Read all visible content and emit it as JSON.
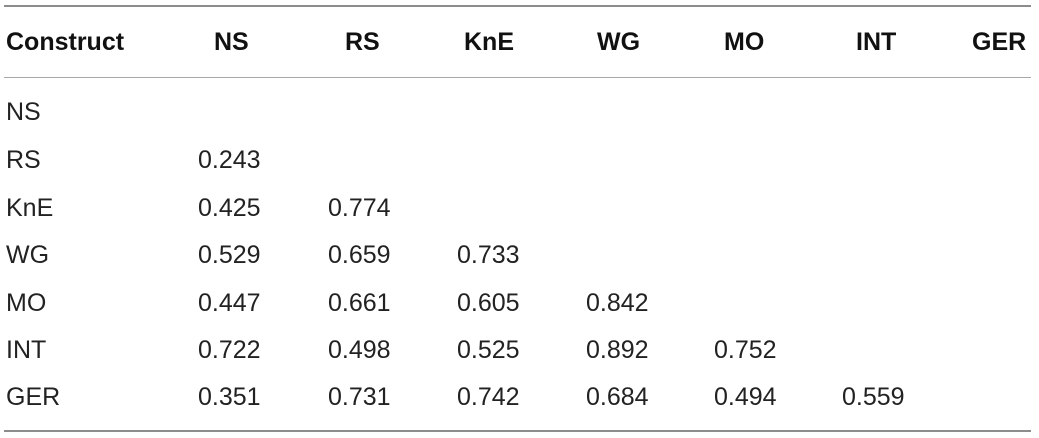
{
  "table": {
    "headers": [
      "Construct",
      "NS",
      "RS",
      "KnE",
      "WG",
      "MO",
      "INT",
      "GER"
    ],
    "rows": [
      {
        "label": "NS",
        "values": []
      },
      {
        "label": "RS",
        "values": [
          "0.243"
        ]
      },
      {
        "label": "KnE",
        "values": [
          "0.425",
          "0.774"
        ]
      },
      {
        "label": "WG",
        "values": [
          "0.529",
          "0.659",
          "0.733"
        ]
      },
      {
        "label": "MO",
        "values": [
          "0.447",
          "0.661",
          "0.605",
          "0.842"
        ]
      },
      {
        "label": "INT",
        "values": [
          "0.722",
          "0.498",
          "0.525",
          "0.892",
          "0.752"
        ]
      },
      {
        "label": "GER",
        "values": [
          "0.351",
          "0.731",
          "0.742",
          "0.684",
          "0.494",
          "0.559"
        ]
      }
    ]
  }
}
